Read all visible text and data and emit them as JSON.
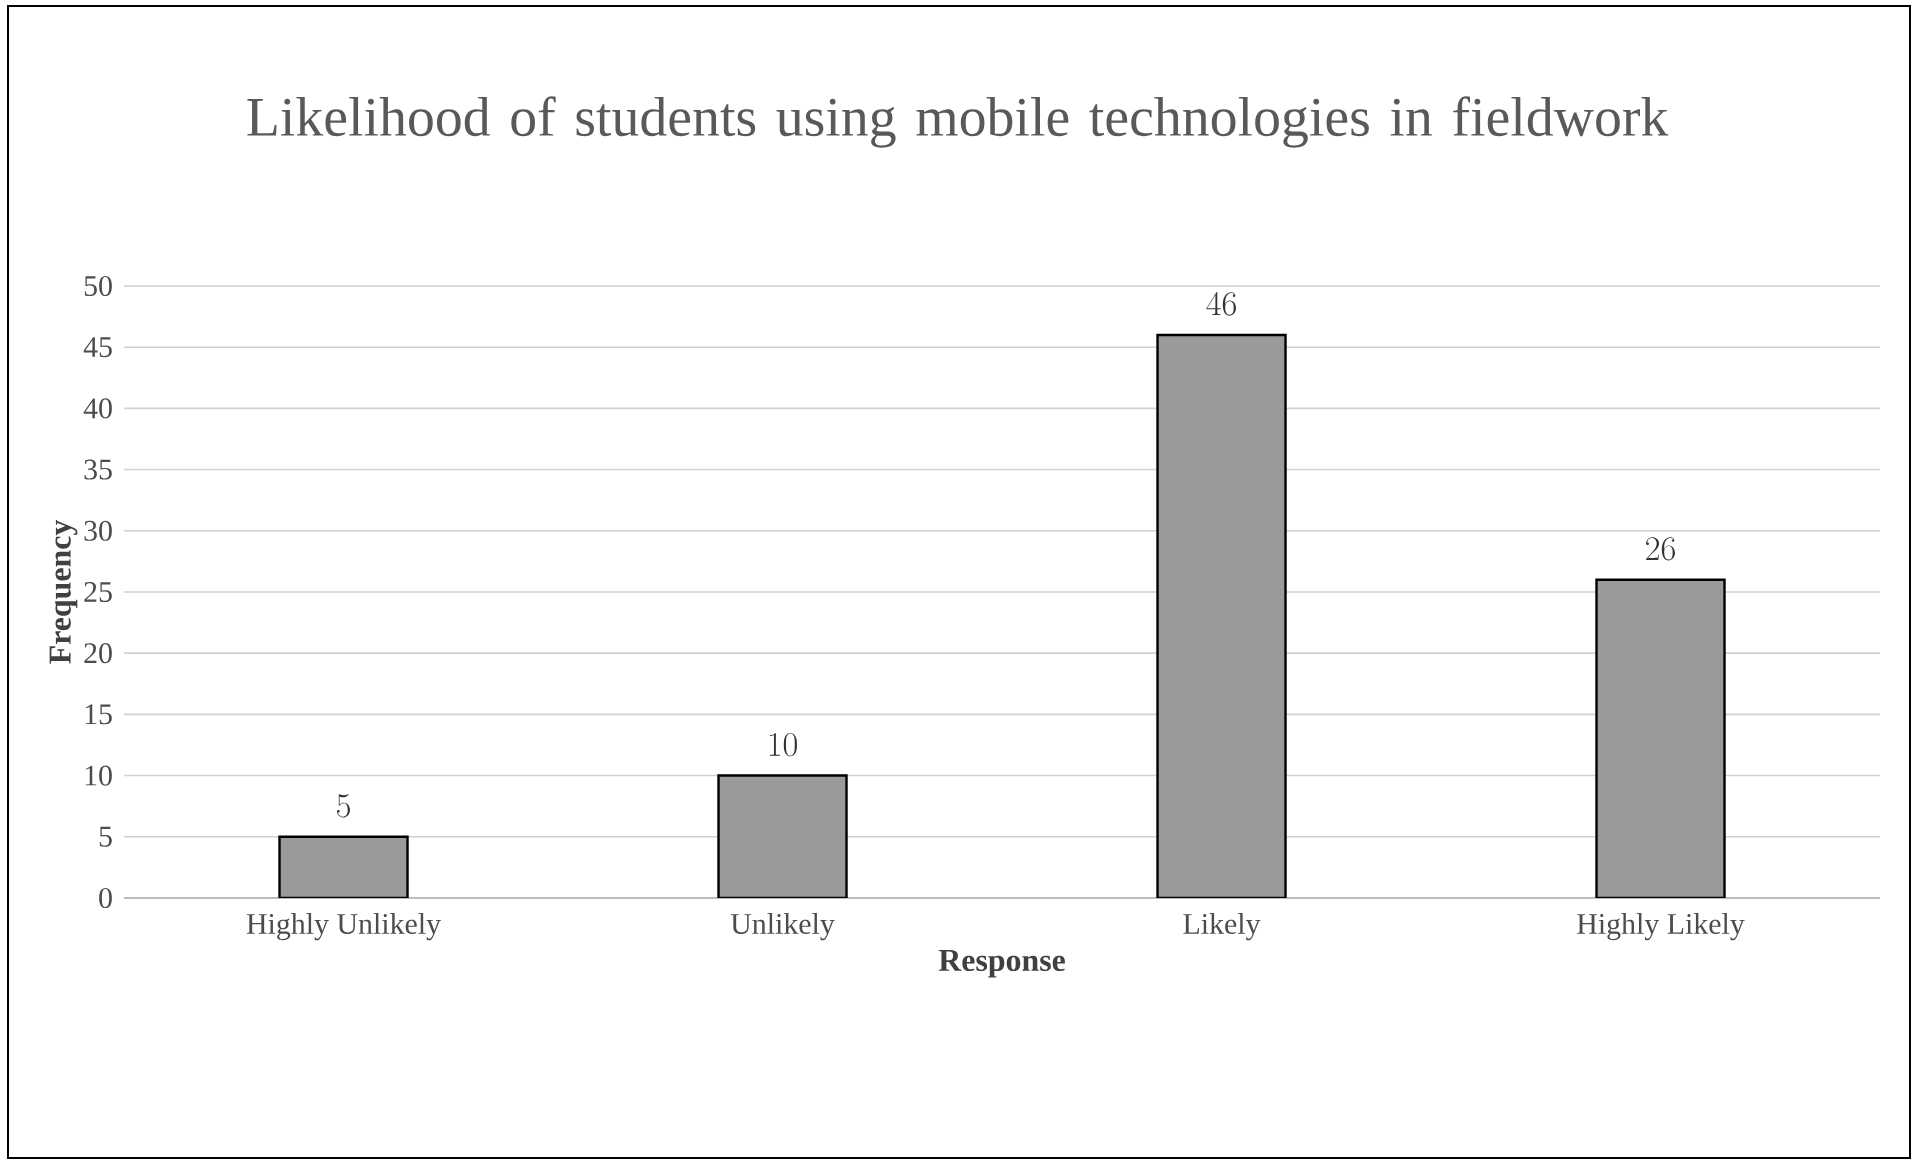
{
  "chart_data": {
    "type": "bar",
    "title": "Likelihood of students using mobile technologies in fieldwork",
    "xlabel": "Response",
    "ylabel": "Frequency",
    "categories": [
      "Highly Unlikely",
      "Unlikely",
      "Likely",
      "Highly Likely"
    ],
    "values": [
      5,
      10,
      46,
      26
    ],
    "color": "#9a9a9a",
    "ylim": [
      0,
      50
    ],
    "yticks": [
      0,
      5,
      10,
      15,
      20,
      25,
      30,
      35,
      40,
      45,
      50
    ],
    "grid": "y",
    "data_labels": true
  }
}
